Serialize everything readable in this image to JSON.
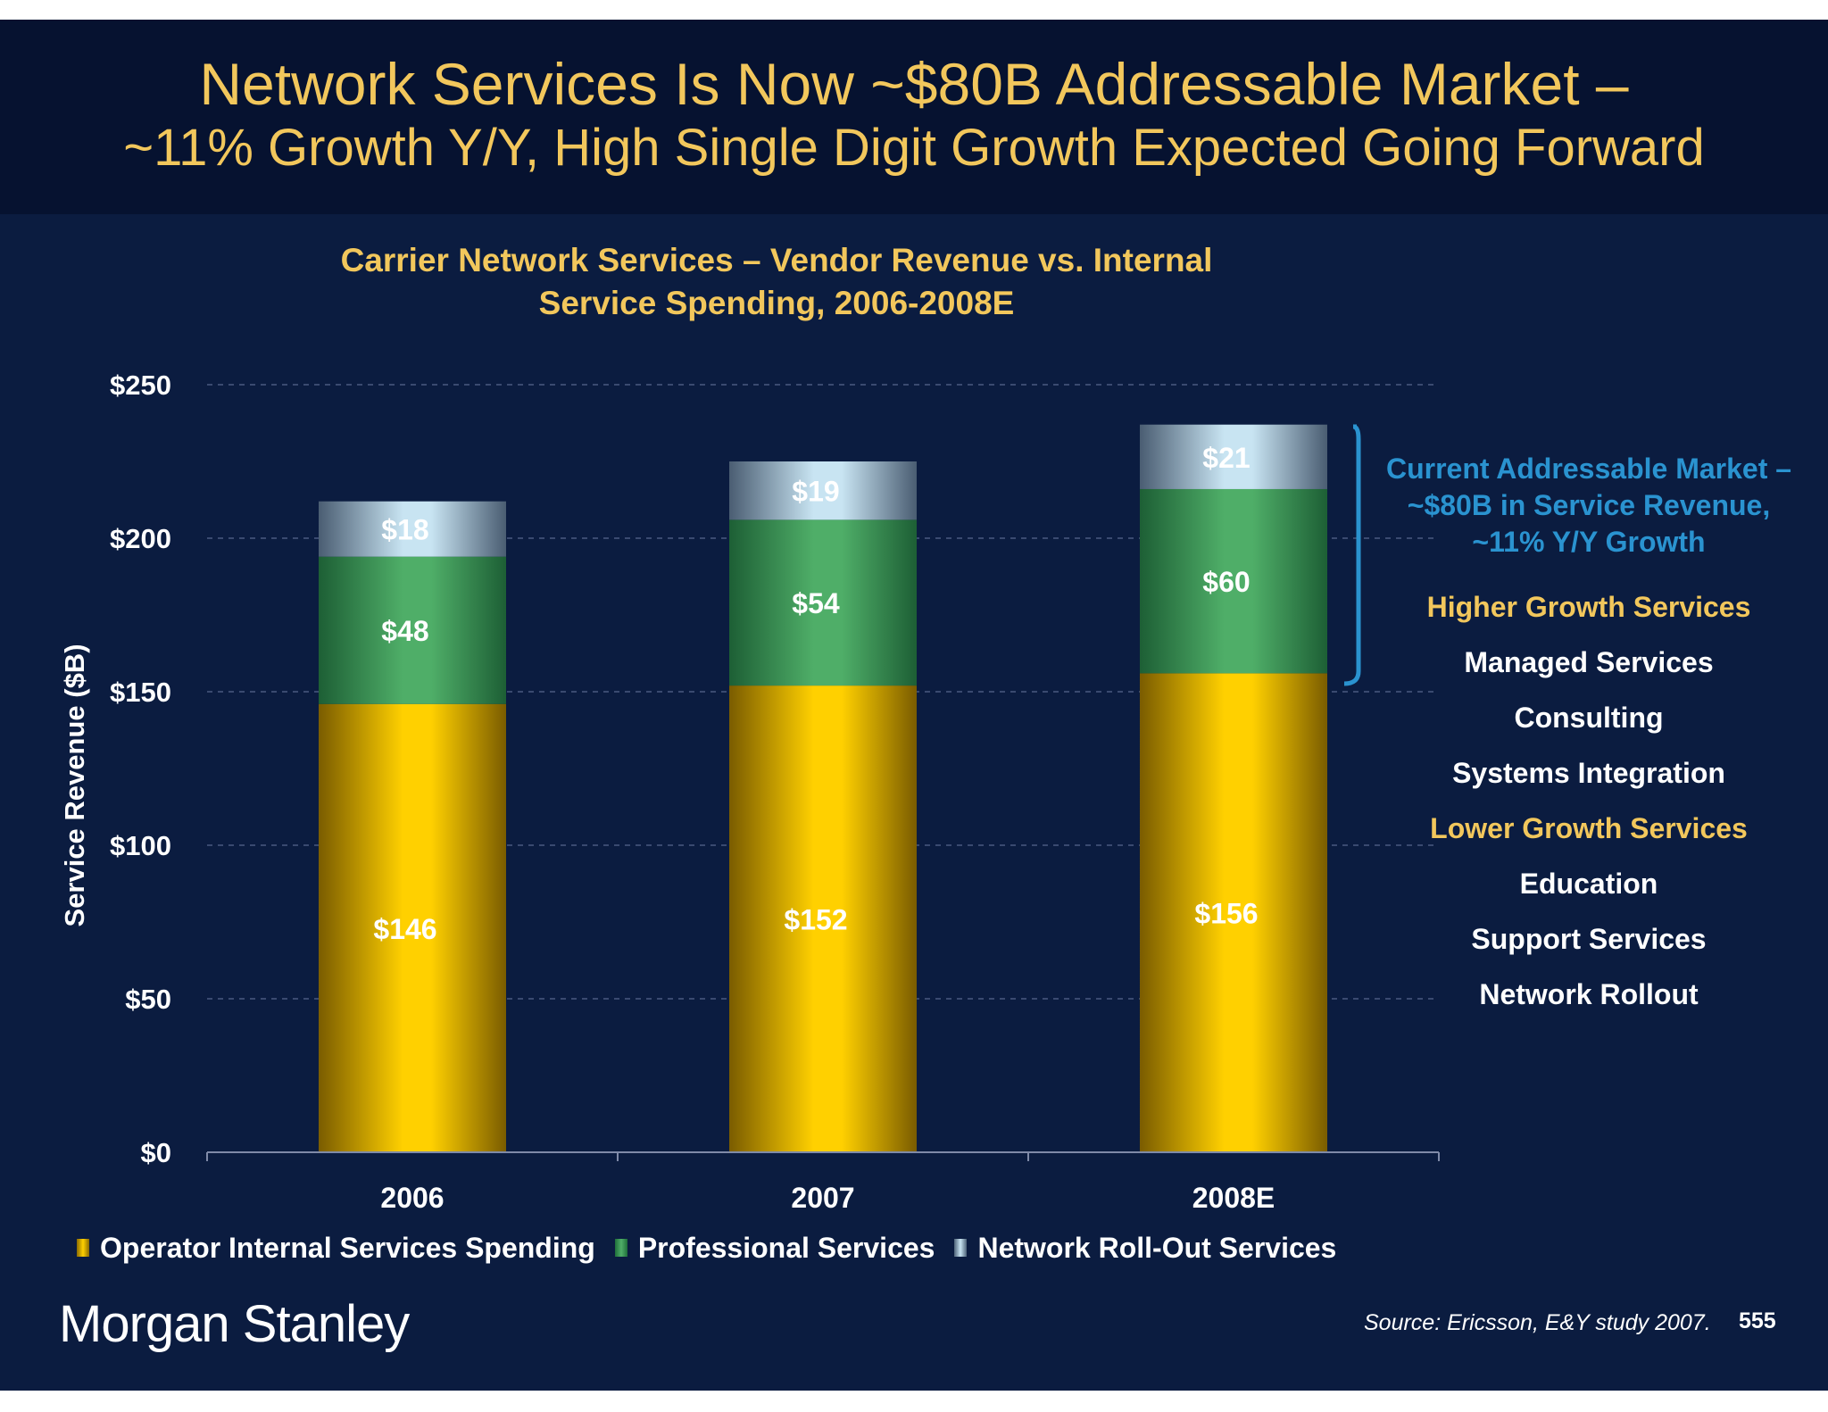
{
  "slide": {
    "title_line1": "Network Services Is Now ~$80B Addressable Market –",
    "title_line2": "~11% Growth Y/Y, High Single Digit Growth Expected Going Forward"
  },
  "chart_data": {
    "type": "bar",
    "stacked": true,
    "title_line1": "Carrier Network Services – Vendor Revenue vs. Internal",
    "title_line2": "Service Spending, 2006-2008E",
    "xlabel": "",
    "ylabel": "Service Revenue ($B)",
    "ylim": [
      0,
      250
    ],
    "yticks": [
      0,
      50,
      100,
      150,
      200,
      250
    ],
    "ytick_labels": [
      "$0",
      "$50",
      "$100",
      "$150",
      "$200",
      "$250"
    ],
    "grid": "dashed horizontal",
    "legend_position": "bottom",
    "categories": [
      "2006",
      "2007",
      "2008E"
    ],
    "series": [
      {
        "name": "Operator Internal Services Spending",
        "values": [
          146,
          152,
          156
        ],
        "labels": [
          "$146",
          "$152",
          "$156"
        ],
        "color": "#ffd000"
      },
      {
        "name": "Professional Services",
        "values": [
          48,
          54,
          60
        ],
        "labels": [
          "$48",
          "$54",
          "$60"
        ],
        "color": "#4fae68"
      },
      {
        "name": "Network Roll-Out Services",
        "values": [
          18,
          19,
          21
        ],
        "labels": [
          "$18",
          "$19",
          "$21"
        ],
        "color": "#c8e4f2"
      }
    ]
  },
  "sidebar": {
    "market_lines": [
      "Current Addressable Market –",
      "~$80B in Service Revenue,",
      "~11% Y/Y Growth"
    ],
    "higher_heading": "Higher Growth Services",
    "higher_items": [
      "Managed Services",
      "Consulting",
      "Systems Integration"
    ],
    "lower_heading": "Lower Growth Services",
    "lower_items": [
      "Education",
      "Support Services",
      "Network Rollout"
    ]
  },
  "footer": {
    "logo": "Morgan Stanley",
    "source": "Source: Ericsson, E&Y study 2007.",
    "page_number": "555"
  },
  "colors": {
    "background": "#0b1c40",
    "header": "#061230",
    "title": "#f2c75c",
    "accent_blue": "#2a93d0"
  }
}
